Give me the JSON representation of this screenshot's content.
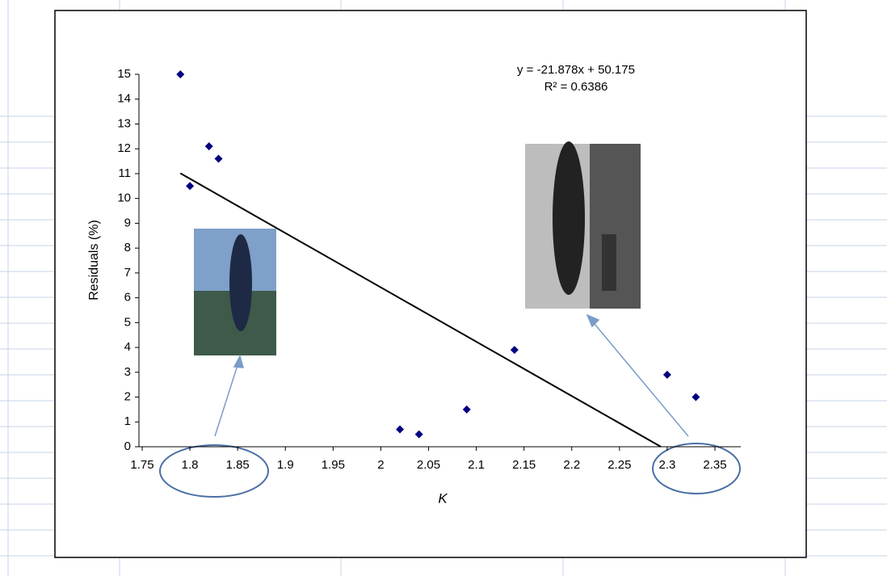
{
  "chart_data": {
    "type": "scatter",
    "x_label": "K",
    "y_label": "Residuals (%)",
    "equation": "y = -21.878x + 50.175",
    "r_squared": "R² = 0.6386",
    "x": [
      1.79,
      1.8,
      1.82,
      1.83,
      2.02,
      2.04,
      2.09,
      2.14,
      2.3,
      2.33
    ],
    "values": [
      15,
      10.5,
      12.1,
      11.6,
      0.7,
      0.5,
      1.5,
      3.9,
      2.9,
      2.0
    ],
    "color": "#000080",
    "trendline": {
      "slope": -21.878,
      "intercept": 50.175,
      "color": "#000000"
    },
    "xlim": [
      1.75,
      2.35
    ],
    "xticks": [
      1.75,
      1.8,
      1.85,
      1.9,
      1.95,
      2,
      2.05,
      2.1,
      2.15,
      2.2,
      2.25,
      2.3,
      2.35
    ],
    "ylim": [
      0,
      15
    ],
    "yticks": [
      0,
      1,
      2,
      3,
      4,
      5,
      6,
      7,
      8,
      9,
      10,
      11,
      12,
      13,
      14,
      15
    ]
  }
}
